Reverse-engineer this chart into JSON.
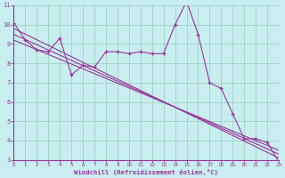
{
  "main_line": {
    "x": [
      0,
      1,
      2,
      3,
      4,
      5,
      6,
      7,
      8,
      9,
      10,
      11,
      12,
      13,
      14,
      15,
      16,
      17,
      18,
      19,
      20,
      21,
      22,
      23
    ],
    "y": [
      10.1,
      9.2,
      8.7,
      8.6,
      9.3,
      7.4,
      7.9,
      7.8,
      8.6,
      8.6,
      8.5,
      8.6,
      8.5,
      8.5,
      10.0,
      11.2,
      9.5,
      7.0,
      6.7,
      5.4,
      4.1,
      4.1,
      3.9,
      2.9
    ]
  },
  "reg_line1": {
    "x": [
      0,
      23
    ],
    "y": [
      9.8,
      3.1
    ]
  },
  "reg_line2": {
    "x": [
      0,
      23
    ],
    "y": [
      9.5,
      3.3
    ]
  },
  "reg_line3": {
    "x": [
      0,
      23
    ],
    "y": [
      9.2,
      3.5
    ]
  },
  "xlim": [
    0,
    23
  ],
  "ylim": [
    3,
    11
  ],
  "yticks": [
    3,
    4,
    5,
    6,
    7,
    8,
    9,
    10,
    11
  ],
  "xticks": [
    0,
    1,
    2,
    3,
    4,
    5,
    6,
    7,
    8,
    9,
    10,
    11,
    12,
    13,
    14,
    15,
    16,
    17,
    18,
    19,
    20,
    21,
    22,
    23
  ],
  "xlabel": "Windchill (Refroidissement éolien,°C)",
  "bg_color": "#c8eef0",
  "line_color": "#993399",
  "grid_color": "#99ccbb",
  "axis_label_color": "#993399",
  "tick_color": "#993399"
}
